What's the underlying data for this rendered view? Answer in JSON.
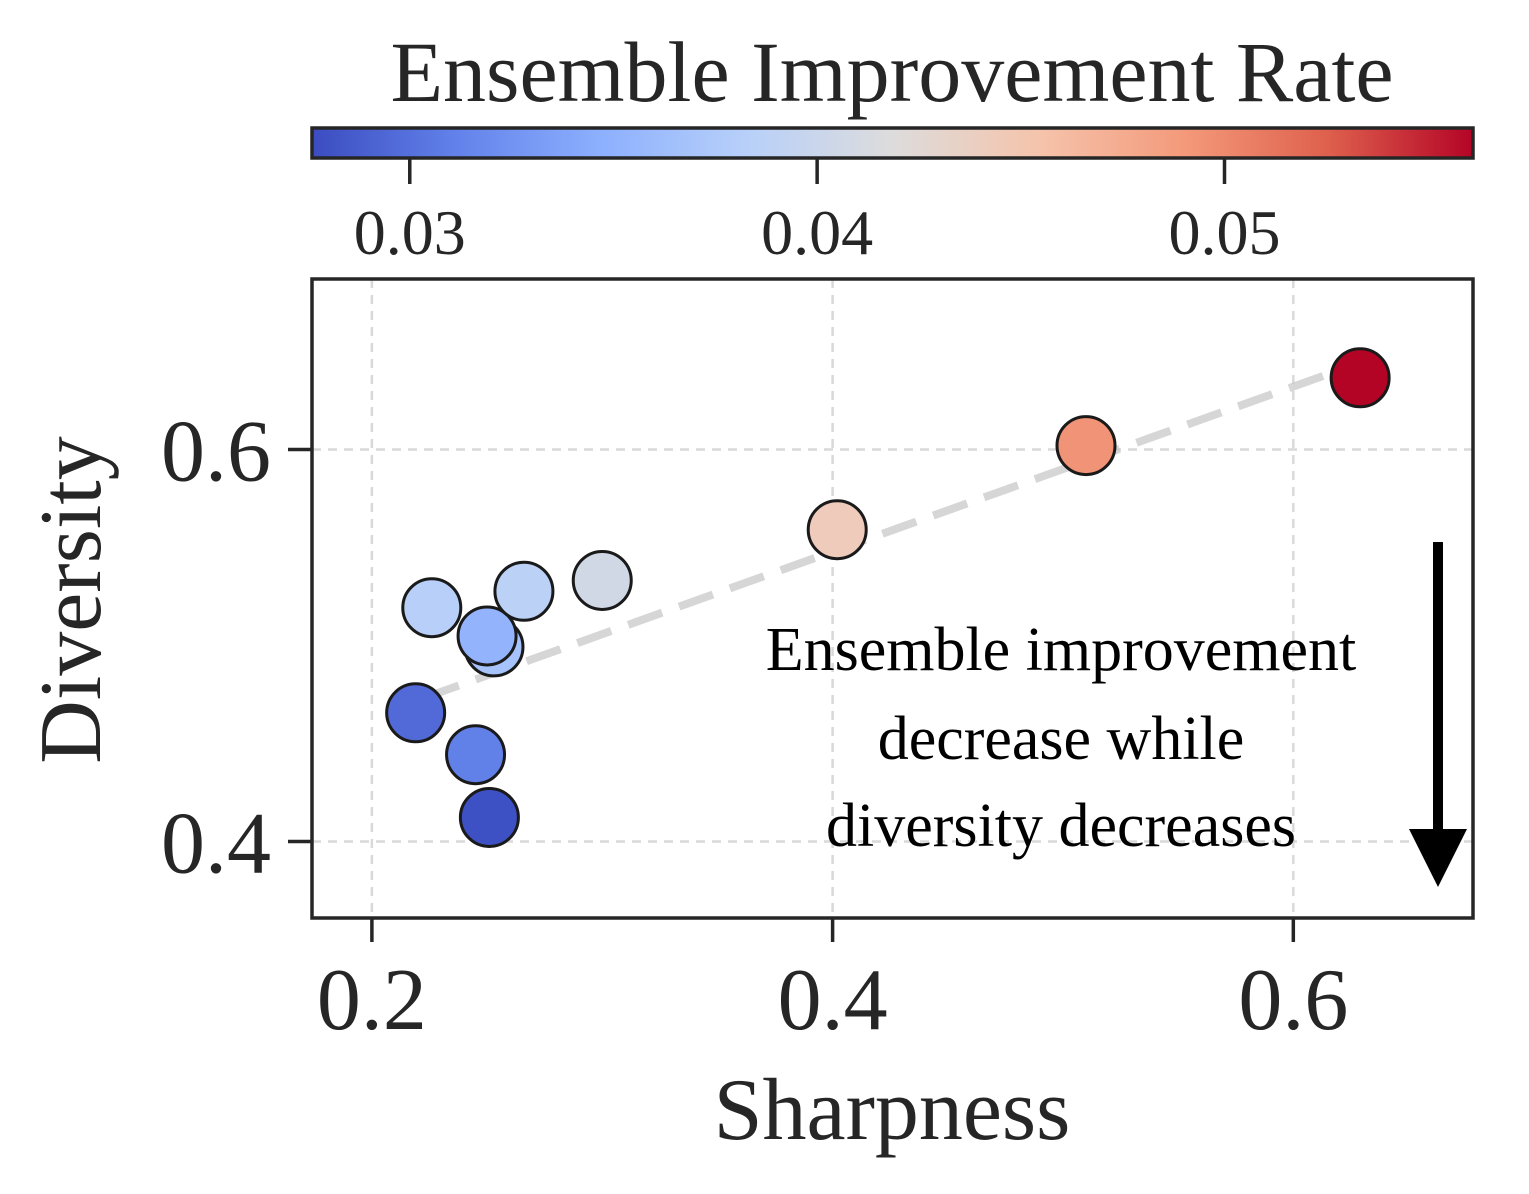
{
  "chart_data": {
    "type": "scatter",
    "xlabel": "Sharpness",
    "ylabel": "Diversity",
    "xlim": [
      0.174,
      0.678
    ],
    "ylim": [
      0.361,
      0.687
    ],
    "xticks": [
      0.2,
      0.4,
      0.6
    ],
    "yticks": [
      0.4,
      0.6
    ],
    "xtick_labels": [
      "0.2",
      "0.4",
      "0.6"
    ],
    "ytick_labels": [
      "0.4",
      "0.6"
    ],
    "grid": true,
    "colorbar": {
      "title": "Ensemble Improvement Rate",
      "colormap": "coolwarm",
      "range": [
        0.0276,
        0.0561
      ],
      "ticks": [
        0.03,
        0.04,
        0.05
      ],
      "tick_labels": [
        "0.03",
        "0.04",
        "0.05"
      ],
      "stops": [
        "#3b4cc0",
        "#6282ea",
        "#8db0fe",
        "#b8d0f9",
        "#dddcdc",
        "#f5c4ac",
        "#f49a7b",
        "#de604d",
        "#b40426"
      ]
    },
    "points": [
      {
        "x": 0.219,
        "y": 0.4657,
        "c": 0.0296
      },
      {
        "x": 0.245,
        "y": 0.4443,
        "c": 0.0311
      },
      {
        "x": 0.251,
        "y": 0.4123,
        "c": 0.0279
      },
      {
        "x": 0.226,
        "y": 0.5193,
        "c": 0.0383
      },
      {
        "x": 0.253,
        "y": 0.4993,
        "c": 0.0368
      },
      {
        "x": 0.25,
        "y": 0.5049,
        "c": 0.0352
      },
      {
        "x": 0.266,
        "y": 0.5277,
        "c": 0.0386
      },
      {
        "x": 0.3,
        "y": 0.5332,
        "c": 0.0406
      },
      {
        "x": 0.402,
        "y": 0.5591,
        "c": 0.0443
      },
      {
        "x": 0.51,
        "y": 0.602,
        "c": 0.0494
      },
      {
        "x": 0.629,
        "y": 0.6366,
        "c": 0.0561
      }
    ],
    "trend_line": {
      "x": [
        0.223,
        0.628
      ],
      "y": [
        0.4734,
        0.6439
      ]
    },
    "annotation": {
      "lines": [
        "Ensemble improvement",
        "decrease while",
        "diversity decreases"
      ],
      "arrow": "down"
    }
  }
}
